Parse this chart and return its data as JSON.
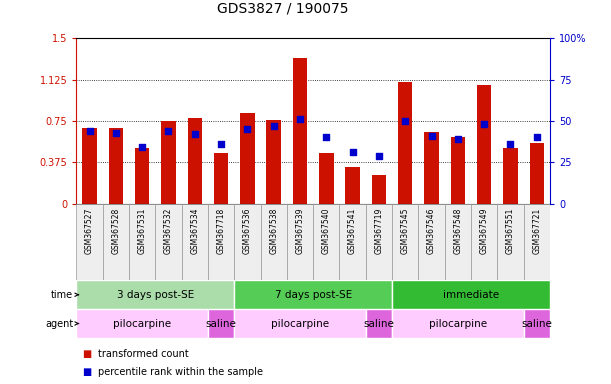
{
  "title": "GDS3827 / 190075",
  "samples": [
    "GSM367527",
    "GSM367528",
    "GSM367531",
    "GSM367532",
    "GSM367534",
    "GSM367718",
    "GSM367536",
    "GSM367538",
    "GSM367539",
    "GSM367540",
    "GSM367541",
    "GSM367719",
    "GSM367545",
    "GSM367546",
    "GSM367548",
    "GSM367549",
    "GSM367551",
    "GSM367721"
  ],
  "red_values": [
    0.69,
    0.69,
    0.5,
    0.75,
    0.78,
    0.46,
    0.82,
    0.76,
    1.32,
    0.46,
    0.33,
    0.26,
    1.1,
    0.65,
    0.6,
    1.08,
    0.5,
    0.55
  ],
  "blue_pct": [
    44,
    43,
    34,
    44,
    42,
    36,
    45,
    47,
    51,
    40,
    31,
    29,
    50,
    41,
    39,
    48,
    36,
    40
  ],
  "time_groups": [
    {
      "label": "3 days post-SE",
      "start": 0,
      "end": 6,
      "color": "#aaddaa"
    },
    {
      "label": "7 days post-SE",
      "start": 6,
      "end": 12,
      "color": "#55cc55"
    },
    {
      "label": "immediate",
      "start": 12,
      "end": 18,
      "color": "#33bb33"
    }
  ],
  "agent_groups": [
    {
      "label": "pilocarpine",
      "start": 0,
      "end": 5,
      "color": "#ffccff"
    },
    {
      "label": "saline",
      "start": 5,
      "end": 6,
      "color": "#dd66dd"
    },
    {
      "label": "pilocarpine",
      "start": 6,
      "end": 11,
      "color": "#ffccff"
    },
    {
      "label": "saline",
      "start": 11,
      "end": 12,
      "color": "#dd66dd"
    },
    {
      "label": "pilocarpine",
      "start": 12,
      "end": 17,
      "color": "#ffccff"
    },
    {
      "label": "saline",
      "start": 17,
      "end": 18,
      "color": "#dd66dd"
    }
  ],
  "ylim": [
    0,
    1.5
  ],
  "yticks": [
    0,
    0.375,
    0.75,
    1.125,
    1.5
  ],
  "ytick_labels": [
    "0",
    "0.375",
    "0.75",
    "1.125",
    "1.5"
  ],
  "y2ticks": [
    0,
    25,
    50,
    75,
    100
  ],
  "y2tick_labels": [
    "0",
    "25",
    "50",
    "75",
    "100%"
  ],
  "bar_color": "#cc1100",
  "dot_color": "#0000cc",
  "title_fontsize": 10,
  "tick_fontsize": 7,
  "label_fontsize": 7,
  "annot_fontsize": 7.5
}
